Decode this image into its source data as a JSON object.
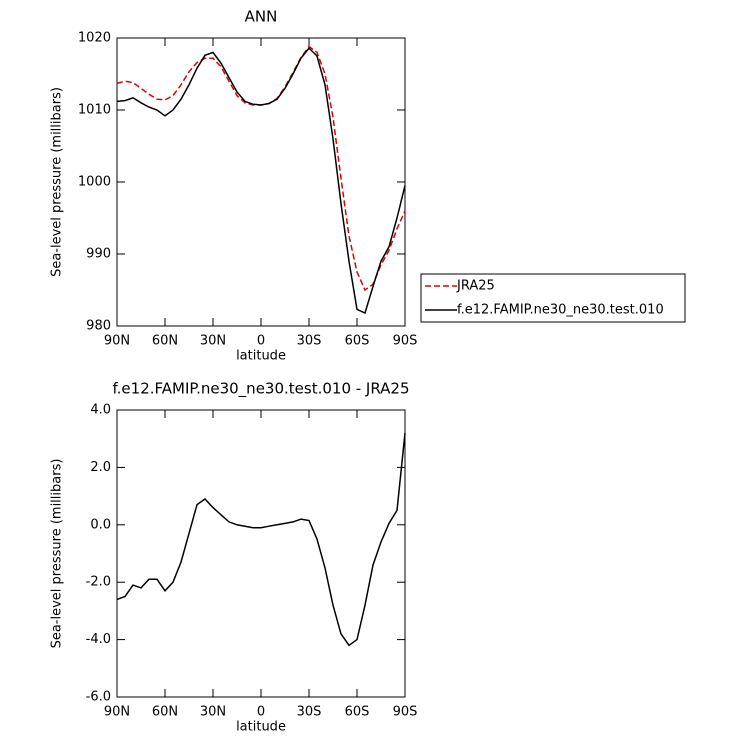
{
  "chart_data": [
    {
      "type": "line",
      "title": "ANN",
      "xlabel": "latitude",
      "ylabel": "Sea-level pressure (millibars)",
      "x": [
        90,
        85,
        80,
        75,
        70,
        65,
        60,
        55,
        50,
        45,
        40,
        35,
        30,
        25,
        20,
        15,
        10,
        5,
        0,
        -5,
        -10,
        -15,
        -20,
        -25,
        -30,
        -35,
        -40,
        -45,
        -50,
        -55,
        -60,
        -65,
        -70,
        -75,
        -80,
        -85,
        -90
      ],
      "xlim": [
        90,
        -90
      ],
      "xticks": [
        {
          "value": 90,
          "label": "90N"
        },
        {
          "value": 60,
          "label": "60N"
        },
        {
          "value": 30,
          "label": "30N"
        },
        {
          "value": 0,
          "label": "0"
        },
        {
          "value": -30,
          "label": "30S"
        },
        {
          "value": -60,
          "label": "60S"
        },
        {
          "value": -90,
          "label": "90S"
        }
      ],
      "ylim": [
        980,
        1020
      ],
      "yticks": [
        980,
        990,
        1000,
        1010,
        1020
      ],
      "legend": "right",
      "series": [
        {
          "name": "JRA25",
          "color": "#e00000",
          "linestyle": "dashed",
          "values": [
            1013.7,
            1014.0,
            1013.8,
            1013.0,
            1012.2,
            1011.5,
            1011.4,
            1012.0,
            1013.5,
            1015.3,
            1016.6,
            1017.2,
            1017.2,
            1016.0,
            1014.0,
            1012.0,
            1011.0,
            1010.7,
            1010.7,
            1010.9,
            1011.6,
            1013.2,
            1015.2,
            1017.3,
            1018.8,
            1018.0,
            1015.0,
            1009.0,
            1000.5,
            992.5,
            987.5,
            985.0,
            985.8,
            988.5,
            990.5,
            993.5,
            996.0
          ]
        },
        {
          "name": "f.e12.FAMIP.ne30_ne30.test.010",
          "color": "#000000",
          "linestyle": "solid",
          "values": [
            1011.2,
            1011.3,
            1011.7,
            1011.0,
            1010.4,
            1010.0,
            1009.2,
            1010.0,
            1011.5,
            1013.5,
            1015.8,
            1017.6,
            1018.0,
            1016.5,
            1014.5,
            1012.5,
            1011.2,
            1010.8,
            1010.7,
            1010.9,
            1011.5,
            1013.0,
            1015.0,
            1017.2,
            1018.6,
            1017.5,
            1013.5,
            1006.0,
            997.0,
            989.0,
            982.3,
            981.8,
            985.5,
            989.0,
            991.0,
            995.0,
            999.5
          ]
        }
      ]
    },
    {
      "type": "line",
      "title": "f.e12.FAMIP.ne30_ne30.test.010 - JRA25",
      "xlabel": "latitude",
      "ylabel": "Sea-level pressure (millibars)",
      "x": [
        90,
        85,
        80,
        75,
        70,
        65,
        60,
        55,
        50,
        45,
        40,
        35,
        30,
        25,
        20,
        15,
        10,
        5,
        0,
        -5,
        -10,
        -15,
        -20,
        -25,
        -30,
        -35,
        -40,
        -45,
        -50,
        -55,
        -60,
        -65,
        -70,
        -75,
        -80,
        -85,
        -90
      ],
      "xlim": [
        90,
        -90
      ],
      "xticks": [
        {
          "value": 90,
          "label": "90N"
        },
        {
          "value": 60,
          "label": "60N"
        },
        {
          "value": 30,
          "label": "30N"
        },
        {
          "value": 0,
          "label": "0"
        },
        {
          "value": -30,
          "label": "30S"
        },
        {
          "value": -60,
          "label": "60S"
        },
        {
          "value": -90,
          "label": "90S"
        }
      ],
      "ylim": [
        -6,
        4
      ],
      "yticks": [
        {
          "value": -6,
          "label": "-6.0"
        },
        {
          "value": -4,
          "label": "-4.0"
        },
        {
          "value": -2,
          "label": "-2.0"
        },
        {
          "value": 0,
          "label": "0.0"
        },
        {
          "value": 2,
          "label": "2.0"
        },
        {
          "value": 4,
          "label": "4.0"
        }
      ],
      "series": [
        {
          "color": "#000000",
          "linestyle": "solid",
          "values": [
            -2.6,
            -2.5,
            -2.1,
            -2.2,
            -1.9,
            -1.9,
            -2.3,
            -2.0,
            -1.3,
            -0.3,
            0.7,
            0.9,
            0.6,
            0.35,
            0.1,
            0.0,
            -0.05,
            -0.1,
            -0.1,
            -0.05,
            0.0,
            0.05,
            0.1,
            0.2,
            0.15,
            -0.5,
            -1.5,
            -2.8,
            -3.8,
            -4.2,
            -4.0,
            -2.8,
            -1.4,
            -0.6,
            0.05,
            0.5,
            3.2
          ]
        }
      ]
    }
  ]
}
